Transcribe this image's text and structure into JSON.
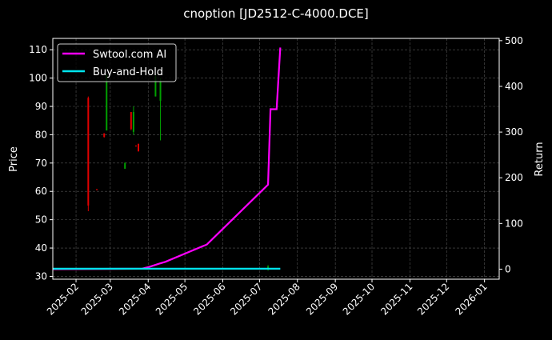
{
  "chart_data": {
    "type": "line",
    "title": "cnoption [JD2512-C-4000.DCE]",
    "ylabel": "Price",
    "y2label": "Return",
    "ylim": [
      29,
      114
    ],
    "y2lim": [
      -22,
      505
    ],
    "xlim": [
      "2025-01-13",
      "2026-01-13"
    ],
    "grid": true,
    "legend_placement": "top-left",
    "x_ticks": [
      "2025-02",
      "2025-03",
      "2025-04",
      "2025-05",
      "2025-06",
      "2025-07",
      "2025-08",
      "2025-09",
      "2025-10",
      "2025-11",
      "2025-12",
      "2026-01"
    ],
    "y_ticks": [
      30,
      40,
      50,
      60,
      70,
      80,
      90,
      100,
      110
    ],
    "y2_ticks": [
      0,
      100,
      200,
      300,
      400,
      500
    ],
    "colors": {
      "background": "#000000",
      "up": "#00a000",
      "down": "#e00000",
      "strategy": "#ff00ff",
      "buy_hold": "#00e5ee"
    },
    "candles": [
      {
        "date": "2025-02-11",
        "open": 93,
        "high": 93.5,
        "low": 53,
        "close": 55
      },
      {
        "date": "2025-02-18",
        "open": 60.8,
        "high": 60.8,
        "low": 60.4,
        "close": 60.5
      },
      {
        "date": "2025-02-24",
        "open": 80.5,
        "high": 80.5,
        "low": 79,
        "close": 79.2
      },
      {
        "date": "2025-02-26",
        "open": 81.5,
        "high": 101.5,
        "low": 81.5,
        "close": 101
      },
      {
        "date": "2025-03-13",
        "open": 68,
        "high": 70.3,
        "low": 68,
        "close": 70
      },
      {
        "date": "2025-03-18",
        "open": 88,
        "high": 88,
        "low": 81.6,
        "close": 82
      },
      {
        "date": "2025-03-20",
        "open": 81,
        "high": 90,
        "low": 80,
        "close": 88
      },
      {
        "date": "2025-03-22",
        "open": 76.2,
        "high": 76.2,
        "low": 75.8,
        "close": 75.9
      },
      {
        "date": "2025-03-24",
        "open": 76.8,
        "high": 76.8,
        "low": 74,
        "close": 74.2
      },
      {
        "date": "2025-04-07",
        "open": 93.5,
        "high": 101,
        "low": 93.5,
        "close": 100.5
      },
      {
        "date": "2025-04-11",
        "open": 92,
        "high": 100,
        "low": 78,
        "close": 99
      },
      {
        "date": "2025-07-08",
        "open": 32.5,
        "high": 34,
        "low": 32,
        "close": 33.5
      }
    ],
    "series": [
      {
        "name": "Swtool.com AI",
        "axis": "right",
        "x": [
          "2025-01-13",
          "2025-03-27",
          "2025-04-02",
          "2025-04-10",
          "2025-04-15",
          "2025-05-19",
          "2025-07-08",
          "2025-07-10",
          "2025-07-15",
          "2025-07-18"
        ],
        "values": [
          0,
          1,
          5,
          12,
          16,
          54,
          185,
          350,
          350,
          485
        ]
      },
      {
        "name": "Buy-and-Hold",
        "axis": "right",
        "x": [
          "2025-01-13",
          "2025-07-18"
        ],
        "values": [
          1,
          1
        ]
      }
    ]
  }
}
